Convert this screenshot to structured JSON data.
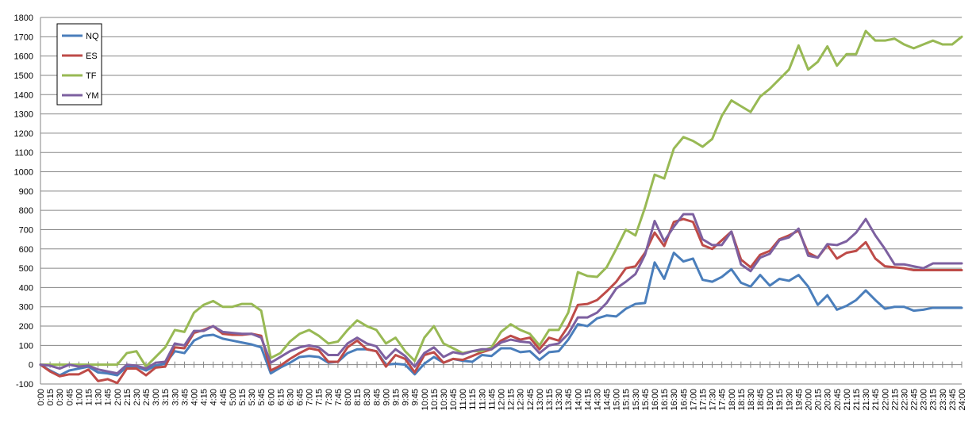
{
  "chart_data": {
    "type": "line",
    "title": "",
    "xlabel": "",
    "ylabel": "",
    "ylim": [
      -100,
      1800
    ],
    "yticks": [
      -100,
      0,
      100,
      200,
      300,
      400,
      500,
      600,
      700,
      800,
      900,
      1000,
      1100,
      1200,
      1300,
      1400,
      1500,
      1600,
      1700,
      1800
    ],
    "grid": "horizontal",
    "legend": "top-left",
    "categories": [
      "0:00",
      "0:15",
      "0:30",
      "0:45",
      "1:00",
      "1:15",
      "1:30",
      "1:45",
      "2:00",
      "2:15",
      "2:30",
      "2:45",
      "3:00",
      "3:15",
      "3:30",
      "3:45",
      "4:00",
      "4:15",
      "4:30",
      "4:45",
      "5:00",
      "5:15",
      "5:30",
      "5:45",
      "6:00",
      "6:15",
      "6:30",
      "6:45",
      "7:00",
      "7:15",
      "7:30",
      "7:45",
      "8:00",
      "8:15",
      "8:30",
      "8:45",
      "9:00",
      "9:15",
      "9:30",
      "9:45",
      "10:00",
      "10:15",
      "10:30",
      "10:45",
      "11:00",
      "11:15",
      "11:30",
      "11:45",
      "12:00",
      "12:15",
      "12:30",
      "12:45",
      "13:00",
      "13:15",
      "13:30",
      "13:45",
      "14:00",
      "14:15",
      "14:30",
      "14:45",
      "15:00",
      "15:15",
      "15:30",
      "15:45",
      "16:00",
      "16:15",
      "16:30",
      "16:45",
      "17:00",
      "17:15",
      "17:30",
      "17:45",
      "18:00",
      "18:15",
      "18:30",
      "18:45",
      "19:00",
      "19:15",
      "19:30",
      "19:45",
      "20:00",
      "20:15",
      "20:30",
      "20:45",
      "21:00",
      "21:15",
      "21:30",
      "21:45",
      "22:00",
      "22:15",
      "22:30",
      "22:45",
      "23:00",
      "23:15",
      "23:30",
      "23:45",
      "24:00"
    ],
    "series": [
      {
        "name": "NQ",
        "color": "#4a7ebb",
        "values": [
          0,
          -30,
          -55,
          -30,
          -20,
          -10,
          -40,
          -45,
          -55,
          -10,
          -10,
          -30,
          -5,
          5,
          70,
          60,
          125,
          150,
          155,
          135,
          125,
          115,
          105,
          90,
          -45,
          -15,
          10,
          40,
          45,
          40,
          10,
          15,
          60,
          80,
          80,
          70,
          0,
          5,
          0,
          -50,
          5,
          40,
          10,
          30,
          20,
          15,
          50,
          45,
          85,
          85,
          65,
          70,
          25,
          65,
          70,
          130,
          210,
          200,
          240,
          255,
          250,
          290,
          315,
          320,
          530,
          445,
          580,
          535,
          550,
          440,
          430,
          455,
          495,
          425,
          405,
          465,
          410,
          445,
          435,
          465,
          405,
          310,
          360,
          285,
          305,
          335,
          385,
          335,
          290,
          300,
          300,
          280,
          285,
          295,
          295,
          295,
          295
        ]
      },
      {
        "name": "ES",
        "color": "#be4b48",
        "values": [
          0,
          -35,
          -60,
          -50,
          -50,
          -25,
          -85,
          -75,
          -95,
          -20,
          -20,
          -55,
          -15,
          -10,
          90,
          85,
          165,
          180,
          200,
          160,
          155,
          155,
          160,
          150,
          -30,
          -5,
          30,
          60,
          85,
          75,
          15,
          15,
          90,
          125,
          80,
          70,
          -10,
          50,
          30,
          -40,
          50,
          65,
          10,
          30,
          25,
          45,
          65,
          80,
          125,
          150,
          130,
          140,
          80,
          140,
          125,
          200,
          310,
          315,
          335,
          380,
          430,
          500,
          510,
          580,
          685,
          615,
          740,
          755,
          740,
          620,
          600,
          645,
          690,
          545,
          505,
          570,
          590,
          650,
          670,
          695,
          580,
          555,
          620,
          550,
          580,
          590,
          635,
          550,
          510,
          505,
          500,
          490,
          490,
          490,
          490,
          490,
          490
        ]
      },
      {
        "name": "TF",
        "color": "#98b954",
        "values": [
          0,
          0,
          0,
          0,
          0,
          0,
          0,
          0,
          0,
          60,
          70,
          -10,
          40,
          90,
          180,
          170,
          270,
          310,
          330,
          300,
          300,
          315,
          315,
          280,
          35,
          60,
          120,
          160,
          180,
          150,
          110,
          120,
          180,
          230,
          200,
          180,
          110,
          140,
          70,
          20,
          140,
          200,
          110,
          85,
          60,
          70,
          70,
          90,
          170,
          210,
          180,
          160,
          100,
          180,
          180,
          270,
          480,
          460,
          455,
          505,
          600,
          700,
          670,
          815,
          985,
          965,
          1120,
          1180,
          1160,
          1130,
          1170,
          1290,
          1370,
          1340,
          1310,
          1390,
          1430,
          1480,
          1530,
          1655,
          1530,
          1570,
          1650,
          1550,
          1610,
          1610,
          1730,
          1680,
          1680,
          1690,
          1660,
          1640,
          1660,
          1680,
          1660,
          1660,
          1700
        ]
      },
      {
        "name": "YM",
        "color": "#7d60a0",
        "values": [
          0,
          -5,
          -20,
          0,
          -10,
          -5,
          -25,
          -35,
          -45,
          0,
          -5,
          -20,
          10,
          15,
          110,
          100,
          175,
          175,
          200,
          170,
          165,
          160,
          160,
          140,
          10,
          40,
          70,
          90,
          100,
          90,
          50,
          50,
          110,
          140,
          110,
          95,
          30,
          80,
          45,
          -10,
          60,
          90,
          40,
          65,
          55,
          70,
          80,
          80,
          115,
          130,
          120,
          115,
          60,
          100,
          110,
          160,
          245,
          245,
          270,
          320,
          395,
          430,
          470,
          570,
          745,
          640,
          715,
          780,
          780,
          650,
          620,
          620,
          690,
          520,
          485,
          555,
          575,
          645,
          660,
          705,
          565,
          555,
          625,
          620,
          640,
          685,
          755,
          670,
          600,
          520,
          520,
          510,
          500,
          525,
          525,
          525,
          525
        ]
      }
    ]
  }
}
